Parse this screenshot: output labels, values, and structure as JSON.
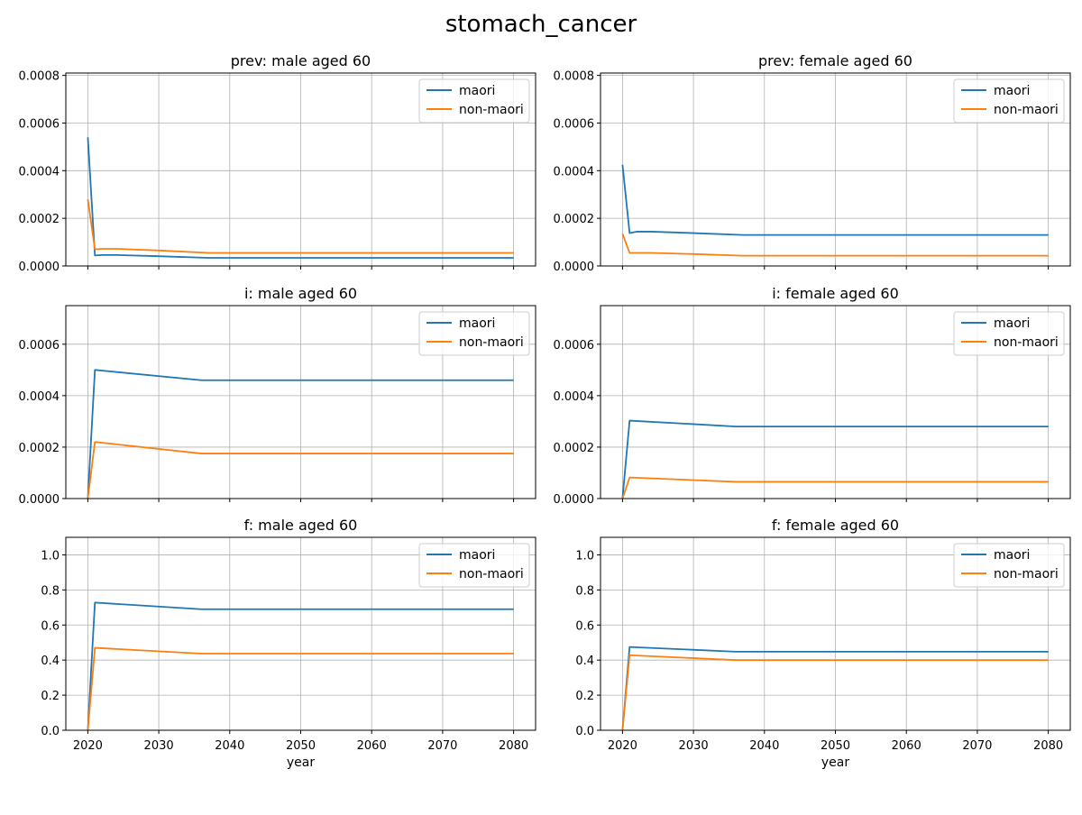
{
  "figure_title": "stomach_cancer",
  "colors": {
    "maori": "#1f77b4",
    "non_maori": "#ff7f0e",
    "grid": "#b0b0b0",
    "axis": "#000000"
  },
  "chart_data": [
    {
      "type": "line",
      "title": "prev: male aged 60",
      "xlabel": "",
      "ylabel": "",
      "xlim": [
        2016.9,
        2083.1
      ],
      "ylim": [
        0,
        0.00081
      ],
      "xticks": [
        2020,
        2030,
        2040,
        2050,
        2060,
        2070,
        2080
      ],
      "xtick_labels": [
        "",
        "",
        "",
        "",
        "",
        "",
        ""
      ],
      "yticks": [
        0,
        0.0002,
        0.0004,
        0.0006,
        0.0008
      ],
      "ytick_labels": [
        "0.0000",
        "0.0002",
        "0.0004",
        "0.0006",
        "0.0008"
      ],
      "grid": true,
      "legend": "top-right",
      "series": [
        {
          "name": "maori",
          "x": [
            2020,
            2021,
            2022,
            2024,
            2030,
            2037,
            2080
          ],
          "y": [
            0.00054,
            4.4e-05,
            4.6e-05,
            4.6e-05,
            4.1e-05,
            3.4e-05,
            3.4e-05
          ]
        },
        {
          "name": "non-maori",
          "x": [
            2020,
            2021,
            2022,
            2024,
            2030,
            2037,
            2080
          ],
          "y": [
            0.00028,
            7e-05,
            7.2e-05,
            7.2e-05,
            6.5e-05,
            5.5e-05,
            5.5e-05
          ]
        }
      ]
    },
    {
      "type": "line",
      "title": "prev: female aged 60",
      "xlabel": "",
      "ylabel": "",
      "xlim": [
        2016.9,
        2083.1
      ],
      "ylim": [
        0,
        0.00081
      ],
      "xticks": [
        2020,
        2030,
        2040,
        2050,
        2060,
        2070,
        2080
      ],
      "xtick_labels": [
        "",
        "",
        "",
        "",
        "",
        "",
        ""
      ],
      "yticks": [
        0,
        0.0002,
        0.0004,
        0.0006,
        0.0008
      ],
      "ytick_labels": [
        "0.0000",
        "0.0002",
        "0.0004",
        "0.0006",
        "0.0008"
      ],
      "grid": true,
      "legend": "top-right",
      "series": [
        {
          "name": "maori",
          "x": [
            2020,
            2021,
            2022,
            2024,
            2030,
            2037,
            2080
          ],
          "y": [
            0.000425,
            0.000138,
            0.000144,
            0.000144,
            0.000138,
            0.00013,
            0.00013
          ]
        },
        {
          "name": "non-maori",
          "x": [
            2020,
            2021,
            2024,
            2030,
            2037,
            2080
          ],
          "y": [
            0.000135,
            5.5e-05,
            5.5e-05,
            5e-05,
            4.3e-05,
            4.3e-05
          ]
        }
      ]
    },
    {
      "type": "line",
      "title": "i: male aged 60",
      "xlabel": "",
      "ylabel": "",
      "xlim": [
        2016.9,
        2083.1
      ],
      "ylim": [
        0,
        0.00075
      ],
      "xticks": [
        2020,
        2030,
        2040,
        2050,
        2060,
        2070,
        2080
      ],
      "xtick_labels": [
        "",
        "",
        "",
        "",
        "",
        "",
        ""
      ],
      "yticks": [
        0,
        0.0002,
        0.0004,
        0.0006
      ],
      "ytick_labels": [
        "0.0000",
        "0.0002",
        "0.0004",
        "0.0006"
      ],
      "grid": true,
      "legend": "top-right",
      "series": [
        {
          "name": "maori",
          "x": [
            2020,
            2021,
            2036,
            2080
          ],
          "y": [
            0,
            0.0005,
            0.00046,
            0.00046
          ]
        },
        {
          "name": "non-maori",
          "x": [
            2020,
            2021,
            2036,
            2080
          ],
          "y": [
            0,
            0.00022,
            0.000175,
            0.000175
          ]
        }
      ]
    },
    {
      "type": "line",
      "title": "i: female aged 60",
      "xlabel": "",
      "ylabel": "",
      "xlim": [
        2016.9,
        2083.1
      ],
      "ylim": [
        0,
        0.00075
      ],
      "xticks": [
        2020,
        2030,
        2040,
        2050,
        2060,
        2070,
        2080
      ],
      "xtick_labels": [
        "",
        "",
        "",
        "",
        "",
        "",
        ""
      ],
      "yticks": [
        0,
        0.0002,
        0.0004,
        0.0006
      ],
      "ytick_labels": [
        "0.0000",
        "0.0002",
        "0.0004",
        "0.0006"
      ],
      "grid": true,
      "legend": "top-right",
      "series": [
        {
          "name": "maori",
          "x": [
            2020,
            2021,
            2036,
            2080
          ],
          "y": [
            0,
            0.000303,
            0.00028,
            0.00028
          ]
        },
        {
          "name": "non-maori",
          "x": [
            2020,
            2021,
            2036,
            2080
          ],
          "y": [
            0,
            8.2e-05,
            6.5e-05,
            6.5e-05
          ]
        }
      ]
    },
    {
      "type": "line",
      "title": "f: male aged 60",
      "xlabel": "year",
      "ylabel": "",
      "xlim": [
        2016.9,
        2083.1
      ],
      "ylim": [
        0,
        1.1
      ],
      "xticks": [
        2020,
        2030,
        2040,
        2050,
        2060,
        2070,
        2080
      ],
      "xtick_labels": [
        "2020",
        "2030",
        "2040",
        "2050",
        "2060",
        "2070",
        "2080"
      ],
      "yticks": [
        0,
        0.2,
        0.4,
        0.6,
        0.8,
        1.0
      ],
      "ytick_labels": [
        "0.0",
        "0.2",
        "0.4",
        "0.6",
        "0.8",
        "1.0"
      ],
      "grid": true,
      "legend": "top-right",
      "series": [
        {
          "name": "maori",
          "x": [
            2020,
            2021,
            2036,
            2080
          ],
          "y": [
            0,
            0.728,
            0.69,
            0.69
          ]
        },
        {
          "name": "non-maori",
          "x": [
            2020,
            2021,
            2036,
            2080
          ],
          "y": [
            0,
            0.47,
            0.437,
            0.437
          ]
        }
      ]
    },
    {
      "type": "line",
      "title": "f: female aged 60",
      "xlabel": "year",
      "ylabel": "",
      "xlim": [
        2016.9,
        2083.1
      ],
      "ylim": [
        0,
        1.1
      ],
      "xticks": [
        2020,
        2030,
        2040,
        2050,
        2060,
        2070,
        2080
      ],
      "xtick_labels": [
        "2020",
        "2030",
        "2040",
        "2050",
        "2060",
        "2070",
        "2080"
      ],
      "yticks": [
        0,
        0.2,
        0.4,
        0.6,
        0.8,
        1.0
      ],
      "ytick_labels": [
        "0.0",
        "0.2",
        "0.4",
        "0.6",
        "0.8",
        "1.0"
      ],
      "grid": true,
      "legend": "top-right",
      "series": [
        {
          "name": "maori",
          "x": [
            2020,
            2021,
            2036,
            2080
          ],
          "y": [
            0,
            0.475,
            0.448,
            0.448
          ]
        },
        {
          "name": "non-maori",
          "x": [
            2020,
            2021,
            2036,
            2080
          ],
          "y": [
            0,
            0.428,
            0.4,
            0.4
          ]
        }
      ]
    }
  ]
}
